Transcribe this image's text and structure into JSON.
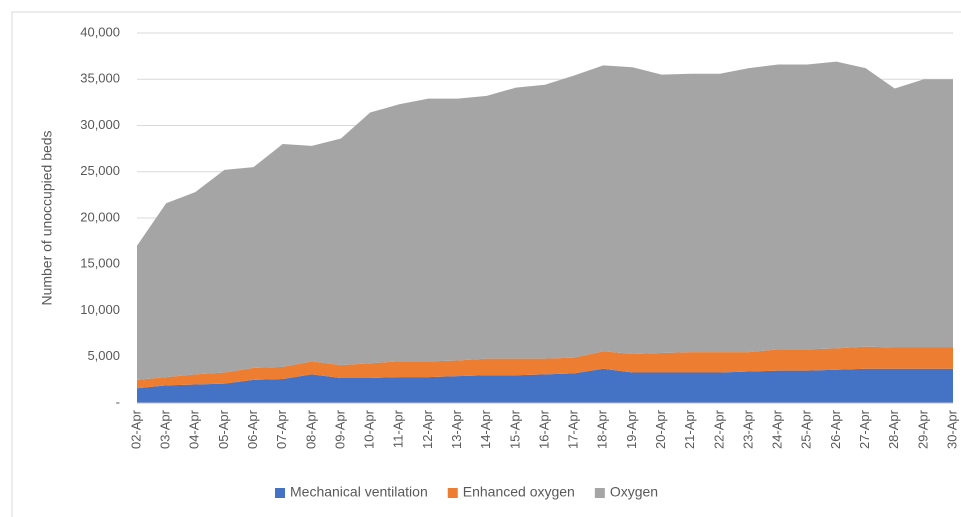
{
  "chart_data": {
    "type": "stacked-area",
    "y_label": "Number of unoccupied beds",
    "categories": [
      "02-Apr",
      "03-Apr",
      "04-Apr",
      "05-Apr",
      "06-Apr",
      "07-Apr",
      "08-Apr",
      "09-Apr",
      "10-Apr",
      "11-Apr",
      "12-Apr",
      "13-Apr",
      "14-Apr",
      "15-Apr",
      "16-Apr",
      "17-Apr",
      "18-Apr",
      "19-Apr",
      "20-Apr",
      "21-Apr",
      "22-Apr",
      "23-Apr",
      "24-Apr",
      "25-Apr",
      "26-Apr",
      "27-Apr",
      "28-Apr",
      "29-Apr",
      "30-Apr"
    ],
    "series": [
      {
        "name": "Mechanical ventilation",
        "color": "#4472c4",
        "values": [
          1600,
          1900,
          2000,
          2100,
          2500,
          2600,
          3100,
          2700,
          2700,
          2800,
          2800,
          2900,
          3000,
          3000,
          3100,
          3200,
          3700,
          3300,
          3300,
          3300,
          3300,
          3400,
          3500,
          3500,
          3600,
          3700,
          3700,
          3700,
          3700
        ]
      },
      {
        "name": "Enhanced oxygen",
        "color": "#ed7d31",
        "values": [
          900,
          900,
          1100,
          1200,
          1300,
          1300,
          1400,
          1400,
          1600,
          1700,
          1700,
          1700,
          1800,
          1800,
          1700,
          1700,
          1900,
          2000,
          2100,
          2200,
          2200,
          2100,
          2300,
          2300,
          2300,
          2400,
          2300,
          2300,
          2300
        ]
      },
      {
        "name": "Oxygen",
        "color": "#a5a5a5",
        "values": [
          14500,
          18800,
          19700,
          21900,
          21700,
          24100,
          23300,
          24500,
          27100,
          27800,
          28400,
          28300,
          28400,
          29300,
          29600,
          30500,
          30900,
          31000,
          30100,
          30100,
          30100,
          30700,
          30800,
          30800,
          31000,
          30100,
          28000,
          29000,
          29000
        ]
      }
    ],
    "ylim": [
      0,
      40000
    ],
    "yticks": [
      {
        "value": 0,
        "label": "-"
      },
      {
        "value": 5000,
        "label": "5,000"
      },
      {
        "value": 10000,
        "label": "10,000"
      },
      {
        "value": 15000,
        "label": "15,000"
      },
      {
        "value": 20000,
        "label": "20,000"
      },
      {
        "value": 25000,
        "label": "25,000"
      },
      {
        "value": 30000,
        "label": "30,000"
      },
      {
        "value": 35000,
        "label": "35,000"
      },
      {
        "value": 40000,
        "label": "40,000"
      }
    ],
    "grid": true,
    "legend": "bottom"
  }
}
